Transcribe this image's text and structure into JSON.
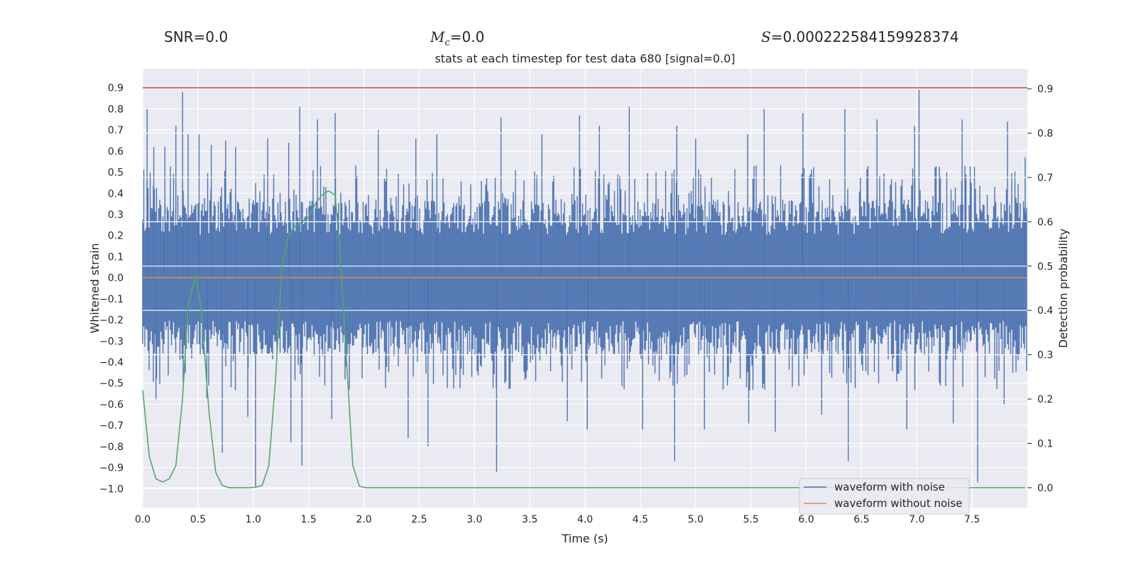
{
  "header": {
    "snr_label": "SNR=0.0",
    "mc_symbol": "M",
    "mc_sub": "c",
    "mc_value": "=0.0",
    "s_symbol": "S",
    "s_value": "=0.000222584159928374"
  },
  "chart_data": {
    "type": "line",
    "title": "stats at each timestep for test data 680 [signal=0.0]",
    "xlabel": "Time (s)",
    "ylabel": "Whitened strain",
    "y2label": "Detection probability",
    "xlim": [
      0.0,
      8.0
    ],
    "ylim": [
      -1.09,
      0.99
    ],
    "y2lim": [
      -0.045,
      0.945
    ],
    "xticks": [
      0.0,
      0.5,
      1.0,
      1.5,
      2.0,
      2.5,
      3.0,
      3.5,
      4.0,
      4.5,
      5.0,
      5.5,
      6.0,
      6.5,
      7.0,
      7.5
    ],
    "xtick_labels": [
      "0.0",
      "0.5",
      "1.0",
      "1.5",
      "2.0",
      "2.5",
      "3.0",
      "3.5",
      "4.0",
      "4.5",
      "5.0",
      "5.5",
      "6.0",
      "6.5",
      "7.0",
      "7.5"
    ],
    "yticks": [
      0.9,
      0.8,
      0.7,
      0.6,
      0.5,
      0.4,
      0.3,
      0.2,
      0.1,
      0.0,
      -0.1,
      -0.2,
      -0.3,
      -0.4,
      -0.5,
      -0.6,
      -0.7,
      -0.8,
      -0.9,
      -1.0
    ],
    "ytick_labels": [
      "0.9",
      "0.8",
      "0.7",
      "0.6",
      "0.5",
      "0.4",
      "0.3",
      "0.2",
      "0.1",
      "0.0",
      "−0.1",
      "−0.2",
      "−0.3",
      "−0.4",
      "−0.5",
      "−0.6",
      "−0.7",
      "−0.8",
      "−0.9",
      "−1.0"
    ],
    "y2ticks": [
      0.9,
      0.8,
      0.7,
      0.6,
      0.5,
      0.4,
      0.3,
      0.2,
      0.1,
      0.0
    ],
    "y2tick_labels": [
      "0.9",
      "0.8",
      "0.7",
      "0.6",
      "0.5",
      "0.4",
      "0.3",
      "0.2",
      "0.1",
      "0.0"
    ],
    "threshold": 0.9,
    "series": [
      {
        "name": "waveform with noise",
        "color": "#4c72b0",
        "axis": "left",
        "kind": "noise",
        "typical_range": [
          -0.37,
          0.37
        ],
        "peaks_up": [
          [
            0.04,
            0.8
          ],
          [
            0.1,
            0.62
          ],
          [
            0.2,
            0.62
          ],
          [
            0.3,
            0.72
          ],
          [
            0.36,
            0.88
          ],
          [
            0.41,
            0.68
          ],
          [
            0.51,
            0.68
          ],
          [
            0.62,
            0.63
          ],
          [
            0.75,
            0.65
          ],
          [
            0.84,
            0.62
          ],
          [
            1.13,
            0.66
          ],
          [
            1.32,
            0.64
          ],
          [
            1.42,
            0.81
          ],
          [
            1.58,
            0.75
          ],
          [
            1.74,
            0.78
          ],
          [
            2.13,
            0.7
          ],
          [
            2.47,
            0.66
          ],
          [
            2.66,
            0.68
          ],
          [
            3.24,
            0.76
          ],
          [
            3.61,
            0.68
          ],
          [
            3.95,
            0.77
          ],
          [
            4.13,
            0.72
          ],
          [
            4.4,
            0.81
          ],
          [
            4.83,
            0.72
          ],
          [
            5.0,
            0.66
          ],
          [
            5.47,
            0.68
          ],
          [
            5.62,
            0.8
          ],
          [
            5.97,
            0.78
          ],
          [
            6.35,
            0.8
          ],
          [
            6.64,
            0.75
          ],
          [
            6.98,
            0.72
          ],
          [
            7.02,
            0.89
          ],
          [
            7.41,
            0.75
          ],
          [
            7.82,
            0.74
          ],
          [
            7.98,
            0.57
          ]
        ],
        "peaks_down": [
          [
            0.12,
            -0.58
          ],
          [
            0.58,
            -0.57
          ],
          [
            0.72,
            -0.83
          ],
          [
            0.95,
            -0.66
          ],
          [
            1.02,
            -0.99
          ],
          [
            1.34,
            -0.78
          ],
          [
            1.44,
            -0.89
          ],
          [
            1.71,
            -0.67
          ],
          [
            2.4,
            -0.76
          ],
          [
            2.58,
            -0.8
          ],
          [
            3.2,
            -0.92
          ],
          [
            3.84,
            -0.68
          ],
          [
            4.02,
            -0.72
          ],
          [
            4.52,
            -0.72
          ],
          [
            4.81,
            -0.87
          ],
          [
            5.08,
            -0.72
          ],
          [
            5.48,
            -0.69
          ],
          [
            5.72,
            -0.73
          ],
          [
            6.14,
            -0.65
          ],
          [
            6.38,
            -0.87
          ],
          [
            6.91,
            -0.72
          ],
          [
            7.33,
            -0.69
          ],
          [
            7.55,
            -0.97
          ],
          [
            7.79,
            -0.6
          ]
        ]
      },
      {
        "name": "waveform without noise",
        "color": "#dd8452",
        "axis": "left",
        "x": [
          0.0,
          8.0
        ],
        "y": [
          0.0,
          0.0
        ]
      },
      {
        "name": "detection probability",
        "color": "#55a868",
        "axis": "right",
        "x": [
          0.0,
          0.06,
          0.12,
          0.18,
          0.24,
          0.3,
          0.36,
          0.41,
          0.48,
          0.53,
          0.6,
          0.66,
          0.72,
          0.78,
          0.84,
          0.9,
          0.96,
          1.02,
          1.08,
          1.14,
          1.2,
          1.26,
          1.32,
          1.38,
          1.44,
          1.5,
          1.56,
          1.62,
          1.68,
          1.74,
          1.78,
          1.84,
          1.9,
          1.96,
          2.02,
          2.08,
          7.98
        ],
        "y": [
          0.22,
          0.07,
          0.02,
          0.013,
          0.02,
          0.05,
          0.2,
          0.41,
          0.48,
          0.4,
          0.17,
          0.035,
          0.005,
          0.0,
          0.0,
          0.0,
          0.0,
          0.001,
          0.005,
          0.05,
          0.24,
          0.5,
          0.57,
          0.59,
          0.6,
          0.61,
          0.64,
          0.66,
          0.67,
          0.66,
          0.55,
          0.3,
          0.05,
          0.003,
          0.0,
          0.0,
          0.0
        ]
      },
      {
        "name": "threshold",
        "color": "#c44e52",
        "axis": "left",
        "x": [
          0.0,
          8.0
        ],
        "y": [
          0.9,
          0.9
        ]
      }
    ],
    "legend": {
      "location": "lower-right",
      "entries": [
        "waveform with noise",
        "waveform without noise"
      ]
    }
  }
}
